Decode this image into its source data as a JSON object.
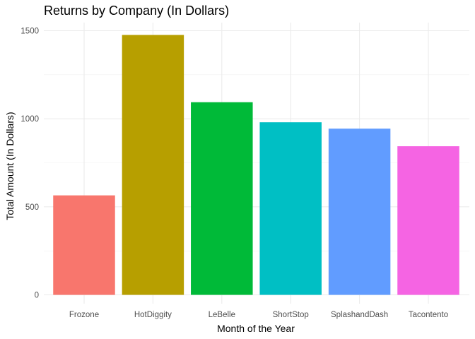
{
  "chart_data": {
    "type": "bar",
    "title": "Returns by Company (In Dollars)",
    "xlabel": "Month of the Year",
    "ylabel": "Total Amount (In Dollars)",
    "categories": [
      "Frozone",
      "HotDiggity",
      "LeBelle",
      "ShortStop",
      "SplashandDash",
      "Tacontento"
    ],
    "values": [
      565,
      1476,
      1094,
      980,
      944,
      844
    ],
    "colors": [
      "#F8766D",
      "#B79F00",
      "#00BA38",
      "#00BFC4",
      "#619CFF",
      "#F564E3"
    ],
    "ylim": [
      0,
      1500
    ],
    "yticks": [
      0,
      500,
      1000,
      1500
    ],
    "ytick_labels": [
      "0",
      "500",
      "1000",
      "1500"
    ],
    "grid": true,
    "legend": "none"
  }
}
